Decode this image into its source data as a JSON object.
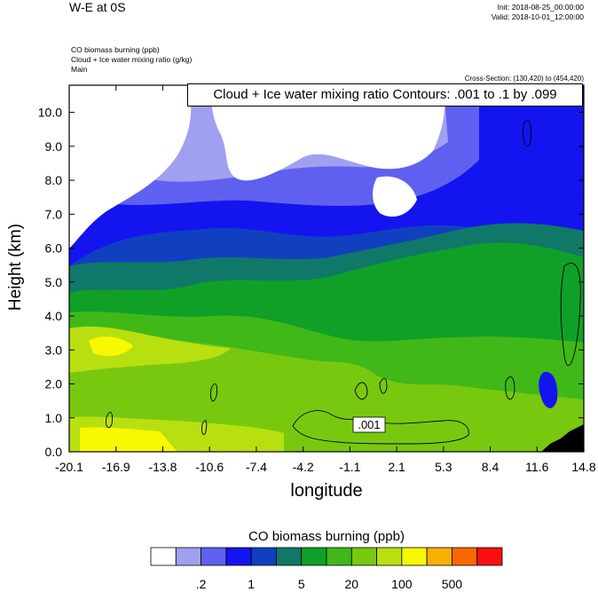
{
  "header": {
    "title": "W-E at 0S",
    "init": "Init: 2018-08-25_00:00:00",
    "valid": "Valid: 2018-10-01_12:00:00",
    "desc_lines": [
      "CO biomass burning   (ppb)",
      "Cloud + Ice water mixing ratio   (g/kg)",
      "Main"
    ],
    "cross_section": "Cross-Section: (130,420) to (454,420)"
  },
  "contour_label": "Cloud + Ice water mixing ratio Contours: .001 to .1 by .099",
  "chart_data": {
    "type": "heatmap",
    "xlabel": "longitude",
    "ylabel": "Height (km)",
    "x_ticks": [
      "-20.1",
      "-16.9",
      "-13.8",
      "-10.6",
      "-7.4",
      "-4.2",
      "-1.1",
      "2.1",
      "5.3",
      "8.4",
      "11.6",
      "14.8"
    ],
    "y_ticks": [
      "0.0",
      "1.0",
      "2.0",
      "3.0",
      "4.0",
      "5.0",
      "6.0",
      "7.0",
      "8.0",
      "9.0",
      "10.0"
    ],
    "xlim": [
      -20.1,
      14.8
    ],
    "ylim": [
      0,
      10.8
    ],
    "contour_annotation": ".001",
    "colorbar": {
      "title": "CO biomass burning  (ppb)",
      "colors": [
        "#ffffff",
        "#a0a0f0",
        "#6060f0",
        "#1414f0",
        "#1040c0",
        "#107868",
        "#10a028",
        "#40b818",
        "#78c810",
        "#b8e010",
        "#f8f800",
        "#f8b000",
        "#f86800",
        "#f81010"
      ],
      "labels": [
        ".2",
        "1",
        "5",
        "20",
        "100",
        "500"
      ]
    }
  }
}
